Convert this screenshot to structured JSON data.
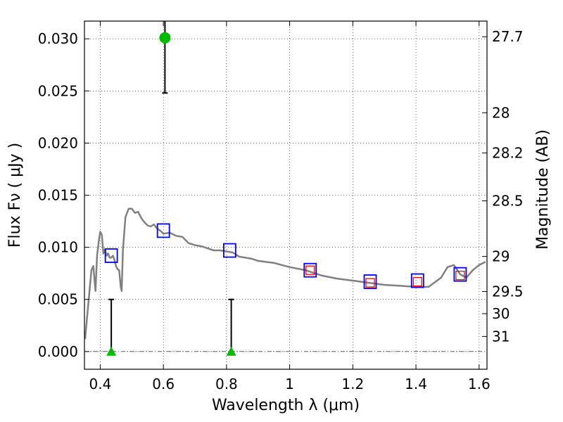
{
  "chart_data": {
    "type": "scatter",
    "xlabel": "Wavelength  λ (μm)",
    "ylabel": "Flux  Fν  ( μJy )",
    "y2label": "Magnitude (AB)",
    "xlim": [
      0.35,
      1.625
    ],
    "ylim": [
      -0.0017,
      0.0317
    ],
    "grid": true,
    "x_ticks": [
      0.4,
      0.6,
      0.8,
      1.0,
      1.2,
      1.4,
      1.6
    ],
    "x_tick_labels": [
      "0.4",
      "0.6",
      "0.8",
      "1",
      "1.2",
      "1.4",
      "1.6"
    ],
    "y_ticks": [
      0.0,
      0.005,
      0.01,
      0.015,
      0.02,
      0.025,
      0.03
    ],
    "y_tick_labels": [
      "0.000",
      "0.005",
      "0.010",
      "0.015",
      "0.020",
      "0.025",
      "0.030"
    ],
    "mag_ticks": [
      27.7,
      28,
      28.2,
      28.5,
      29,
      29.5,
      30,
      31
    ],
    "mag_tick_labels": [
      "27.7",
      "28",
      "28.2",
      "28.5",
      "29",
      "29.5",
      "30",
      "31"
    ],
    "colors": {
      "sed": "#808080",
      "model_box": "#0000ff",
      "observed_box": "#ff0000",
      "detection": "#00bb00",
      "upper_limit": "#00bb00",
      "errorbar": "#000000"
    },
    "series": [
      {
        "kind": "sed_model",
        "x": [
          0.352,
          0.362,
          0.372,
          0.378,
          0.385,
          0.39,
          0.395,
          0.4,
          0.405,
          0.41,
          0.415,
          0.42,
          0.425,
          0.43,
          0.435,
          0.44,
          0.445,
          0.45,
          0.455,
          0.46,
          0.465,
          0.468,
          0.472,
          0.48,
          0.49,
          0.5,
          0.51,
          0.52,
          0.53,
          0.54,
          0.55,
          0.56,
          0.57,
          0.58,
          0.59,
          0.6,
          0.62,
          0.64,
          0.66,
          0.68,
          0.7,
          0.72,
          0.74,
          0.76,
          0.78,
          0.8,
          0.82,
          0.84,
          0.86,
          0.88,
          0.9,
          0.95,
          1.0,
          1.05,
          1.1,
          1.15,
          1.2,
          1.25,
          1.3,
          1.35,
          1.4,
          1.44,
          1.48,
          1.5,
          1.52,
          1.54,
          1.56,
          1.58,
          1.6,
          1.62
        ],
        "y": [
          0.0012,
          0.0045,
          0.0078,
          0.0082,
          0.0058,
          0.0092,
          0.0105,
          0.0115,
          0.0112,
          0.0094,
          0.0098,
          0.0092,
          0.0094,
          0.009,
          0.009,
          0.0092,
          0.0088,
          0.0082,
          0.0079,
          0.0078,
          0.0062,
          0.0058,
          0.0098,
          0.0129,
          0.0137,
          0.0137,
          0.0133,
          0.0134,
          0.0128,
          0.0124,
          0.0121,
          0.012,
          0.0122,
          0.0118,
          0.0116,
          0.0113,
          0.0114,
          0.0111,
          0.011,
          0.0104,
          0.0102,
          0.0101,
          0.0099,
          0.0097,
          0.0097,
          0.0096,
          0.0095,
          0.0091,
          0.009,
          0.0089,
          0.0087,
          0.0085,
          0.0081,
          0.0078,
          0.0073,
          0.007,
          0.0068,
          0.0066,
          0.0064,
          0.0063,
          0.0062,
          0.0062,
          0.0071,
          0.0081,
          0.0083,
          0.0074,
          0.0071,
          0.0078,
          0.0083,
          0.0086
        ]
      },
      {
        "kind": "model_photometry",
        "x": [
          0.435,
          0.6,
          0.81,
          1.065,
          1.255,
          1.405,
          1.54
        ],
        "y": [
          0.0092,
          0.0116,
          0.0097,
          0.0078,
          0.0067,
          0.0068,
          0.0074
        ]
      },
      {
        "kind": "observed_photometry",
        "x": [
          1.065,
          1.255,
          1.405,
          1.54
        ],
        "y": [
          0.0078,
          0.0066,
          0.0067,
          0.0073
        ]
      },
      {
        "kind": "detection",
        "x": [
          0.605
        ],
        "y": [
          0.0301
        ],
        "err_low": [
          0.0053
        ],
        "err_high": [
          0.0053
        ]
      },
      {
        "kind": "upper_limit",
        "x": [
          0.435,
          0.815
        ],
        "y": [
          0.0,
          0.0
        ],
        "limit": [
          0.005,
          0.005
        ]
      }
    ]
  }
}
